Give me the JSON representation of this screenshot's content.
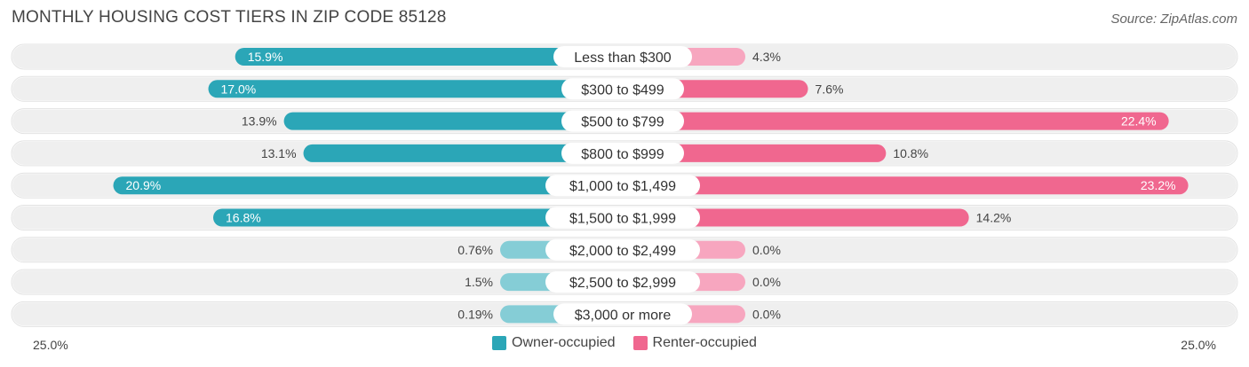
{
  "title": "MONTHLY HOUSING COST TIERS IN ZIP CODE 85128",
  "source": "Source: ZipAtlas.com",
  "colors": {
    "owner_strong": "#2ba6b7",
    "owner_light": "#85cdd6",
    "renter_strong": "#f0678f",
    "renter_light": "#f7a6bf",
    "row_bg": "#efefef"
  },
  "chart_data": {
    "type": "bar",
    "orientation": "diverging-horizontal",
    "categories": [
      "Less than $300",
      "$300 to $499",
      "$500 to $799",
      "$800 to $999",
      "$1,000 to $1,499",
      "$1,500 to $1,999",
      "$2,000 to $2,499",
      "$2,500 to $2,999",
      "$3,000 or more"
    ],
    "series": [
      {
        "name": "Owner-occupied",
        "values": [
          15.9,
          17.0,
          13.9,
          13.1,
          20.9,
          16.8,
          0.76,
          1.5,
          0.19
        ],
        "labels": [
          "15.9%",
          "17.0%",
          "13.9%",
          "13.1%",
          "20.9%",
          "16.8%",
          "0.76%",
          "1.5%",
          "0.19%"
        ]
      },
      {
        "name": "Renter-occupied",
        "values": [
          4.3,
          7.6,
          22.4,
          10.8,
          23.2,
          14.2,
          0.0,
          0.0,
          0.0
        ],
        "labels": [
          "4.3%",
          "7.6%",
          "22.4%",
          "10.8%",
          "23.2%",
          "14.2%",
          "0.0%",
          "0.0%",
          "0.0%"
        ]
      }
    ],
    "xlim": [
      -25,
      25
    ],
    "axis_left_label": "25.0%",
    "axis_right_label": "25.0%",
    "legend": [
      "Owner-occupied",
      "Renter-occupied"
    ],
    "legend_position": "bottom-center"
  }
}
